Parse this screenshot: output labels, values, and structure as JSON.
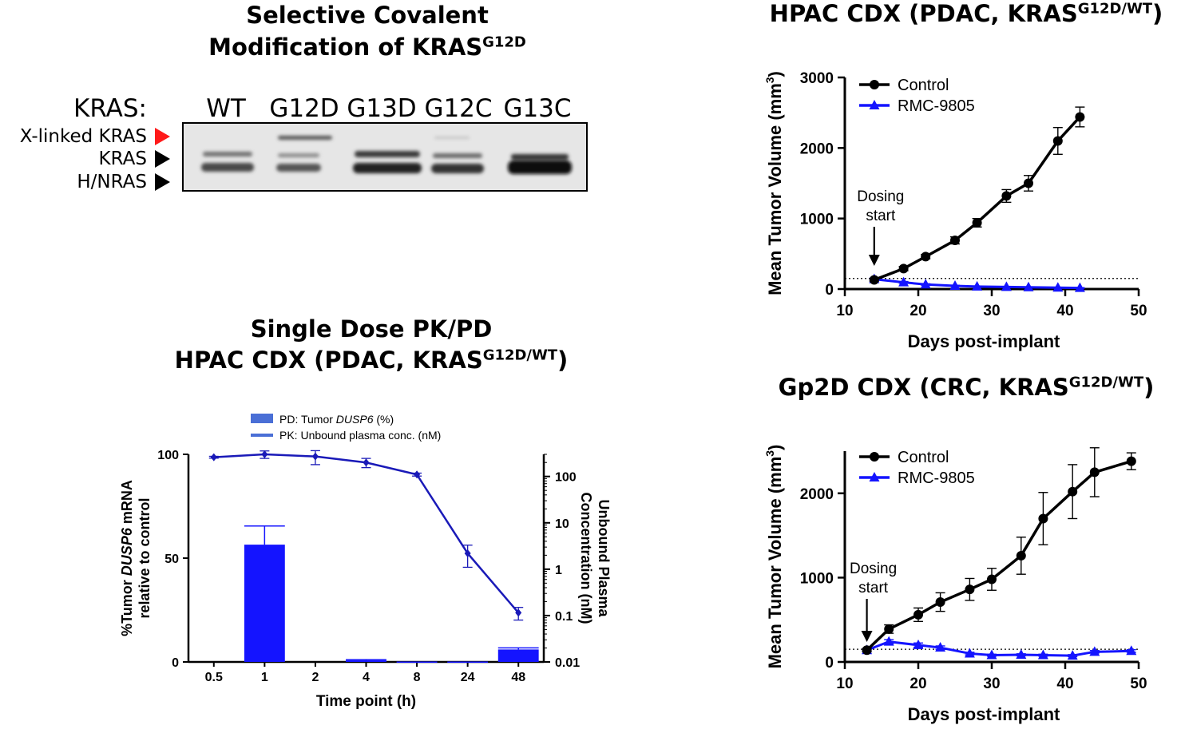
{
  "western_blot": {
    "title_line1": "Selective Covalent",
    "title_line2": "Modification of KRAS",
    "title_sup": "G12D",
    "row_header": "KRAS:",
    "lanes": [
      "WT",
      "G12D",
      "G13D",
      "G12C",
      "G13C"
    ],
    "band_labels": [
      "X-linked KRAS",
      "KRAS",
      "H/NRAS"
    ],
    "marker_colors": [
      "#ff1a1a",
      "#000000",
      "#000000"
    ]
  },
  "pkpd": {
    "title_line1": "Single Dose PK/PD",
    "title_line2": "HPAC CDX (PDAC, KRAS",
    "title_sup": "G12D/WT",
    "title_close": ")"
  },
  "hpac": {
    "title": "HPAC CDX (PDAC, KRAS",
    "title_sup": "G12D/WT",
    "title_close": ")"
  },
  "gp2d": {
    "title": "Gp2D CDX  (CRC, KRAS",
    "title_sup": "G12D/WT",
    "title_close": ")"
  },
  "chart_data": [
    {
      "id": "pkpd",
      "type": "bar",
      "categories": [
        "0.5",
        "1",
        "2",
        "4",
        "8",
        "24",
        "48"
      ],
      "xlabel": "Time point (h)",
      "ylabel_parts": [
        "%Tumor ",
        "DUSP6",
        " mRNA"
      ],
      "ylabel_line2": "relative to control",
      "y2label_line1": "Unbound Plasma",
      "y2label_line2": "Concentration (nM)",
      "ylim": [
        0,
        100
      ],
      "yticks": [
        "0",
        "50",
        "100"
      ],
      "y2_scale": "log",
      "y2lim": [
        0.01,
        300
      ],
      "y2ticks": [
        "0.01",
        "0.1",
        "1",
        "10",
        "100"
      ],
      "y2tick_values": [
        0.01,
        0.1,
        1,
        10,
        100
      ],
      "legend": [
        {
          "pre": "PD: Tumor ",
          "italic": "DUSP6",
          "post": " (%)",
          "kind": "bar"
        },
        {
          "pre": "PK: Unbound plasma conc. (nM)",
          "italic": "",
          "post": "",
          "kind": "line"
        }
      ],
      "series": [
        {
          "name": "PD: Tumor DUSP6 (%)",
          "kind": "bar",
          "color": "#1414ff",
          "values": [
            null,
            56.5,
            null,
            0.8,
            0.2,
            0.2,
            6.0
          ],
          "error": [
            null,
            9.0,
            null,
            0.3,
            0,
            0,
            0.8
          ]
        },
        {
          "name": "PK: Unbound plasma conc. (nM)",
          "kind": "line",
          "axis": "right",
          "color": "#1a1ab8",
          "values": [
            260,
            300,
            270,
            200,
            110,
            2.2,
            0.115
          ],
          "error": [
            12,
            55,
            90,
            45,
            8,
            1.1,
            0.035
          ]
        }
      ]
    },
    {
      "id": "hpac",
      "type": "line",
      "xlabel": "Days post-implant",
      "ylabel": "Mean Tumor Volume (mm",
      "ylabel_sup": "3",
      "ylabel_close": ")",
      "xlim": [
        10,
        50
      ],
      "ylim": [
        0,
        3000
      ],
      "xticks": [
        "10",
        "20",
        "30",
        "40",
        "50"
      ],
      "yticks": [
        "0",
        "1000",
        "2000",
        "3000"
      ],
      "reference_line": 150,
      "annotation": {
        "line1": "Dosing",
        "line2": "start",
        "x": 14
      },
      "legend_placement": "top-left",
      "series": [
        {
          "name": "Control",
          "marker": "circle",
          "color": "#000000",
          "x": [
            14,
            18,
            21,
            25,
            28,
            32,
            35,
            39,
            42
          ],
          "y": [
            130,
            290,
            460,
            690,
            940,
            1320,
            1500,
            2100,
            2440
          ],
          "error": [
            20,
            30,
            30,
            50,
            60,
            90,
            110,
            190,
            140
          ]
        },
        {
          "name": "RMC-9805",
          "marker": "triangle",
          "color": "#1414ff",
          "x": [
            14,
            18,
            21,
            25,
            28,
            32,
            35,
            39,
            42
          ],
          "y": [
            140,
            95,
            65,
            45,
            35,
            30,
            25,
            20,
            15
          ],
          "error": [
            15,
            12,
            10,
            8,
            6,
            5,
            5,
            5,
            5
          ]
        }
      ]
    },
    {
      "id": "gp2d",
      "type": "line",
      "xlabel": "Days post-implant",
      "ylabel": "Mean Tumor Volume (mm",
      "ylabel_sup": "3",
      "ylabel_close": ")",
      "xlim": [
        10,
        50
      ],
      "ylim": [
        0,
        2500
      ],
      "xticks": [
        "10",
        "20",
        "30",
        "40",
        "50"
      ],
      "yticks": [
        "0",
        "1000",
        "2000"
      ],
      "reference_line": 150,
      "annotation": {
        "line1": "Dosing",
        "line2": "start",
        "x": 13
      },
      "legend_placement": "top-left",
      "series": [
        {
          "name": "Control",
          "marker": "circle",
          "color": "#000000",
          "x": [
            13,
            16,
            20,
            23,
            27,
            30,
            34,
            37,
            41,
            44,
            49
          ],
          "y": [
            140,
            390,
            560,
            710,
            860,
            980,
            1260,
            1700,
            2020,
            2250,
            2380
          ],
          "error": [
            20,
            50,
            80,
            110,
            130,
            130,
            220,
            310,
            320,
            290,
            100
          ]
        },
        {
          "name": "RMC-9805",
          "marker": "triangle",
          "color": "#1414ff",
          "x": [
            13,
            16,
            20,
            23,
            27,
            30,
            34,
            37,
            41,
            44,
            49
          ],
          "y": [
            140,
            240,
            200,
            170,
            100,
            80,
            85,
            80,
            75,
            120,
            130
          ],
          "error": [
            15,
            25,
            25,
            20,
            15,
            12,
            12,
            12,
            12,
            15,
            15
          ]
        }
      ]
    }
  ]
}
